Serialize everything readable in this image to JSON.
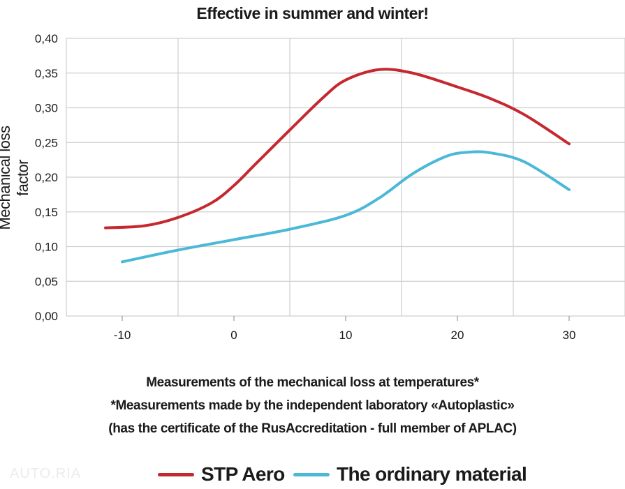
{
  "chart_data": {
    "type": "line",
    "title": "Effective in summer and winter!",
    "ylabel": "Mechanical loss factor",
    "xlabel": "Measurements of the mechanical loss at temperatures*",
    "notes": [
      "*Measurements made by the independent laboratory «Autoplastic»",
      "(has the certificate of the RusAccreditation - full member of APLAC)"
    ],
    "xlim": [
      -15,
      35
    ],
    "ylim": [
      0,
      0.4
    ],
    "x_ticks": [
      -10,
      0,
      10,
      20,
      30
    ],
    "x_tick_labels": [
      "-10",
      "0",
      "10",
      "20",
      "30"
    ],
    "y_ticks": [
      0,
      0.05,
      0.1,
      0.15,
      0.2,
      0.25,
      0.3,
      0.35,
      0.4
    ],
    "y_tick_labels": [
      "0,00",
      "0,05",
      "0,10",
      "0,15",
      "0,20",
      "0,25",
      "0,30",
      "0,35",
      "0,40"
    ],
    "grid": true,
    "legend_position": "bottom",
    "series": [
      {
        "name": "STP Aero",
        "color": "#c5282f",
        "x": [
          -11.5,
          -8,
          -5,
          -2,
          0,
          2,
          5,
          8,
          10,
          13,
          16,
          20,
          23,
          26,
          30
        ],
        "y": [
          0.127,
          0.13,
          0.142,
          0.163,
          0.188,
          0.22,
          0.268,
          0.315,
          0.34,
          0.355,
          0.35,
          0.33,
          0.313,
          0.29,
          0.248
        ]
      },
      {
        "name": "The ordinary material",
        "color": "#4bb8d8",
        "x": [
          -10,
          -5,
          0,
          5,
          10,
          13,
          16,
          19,
          21,
          23,
          26,
          30
        ],
        "y": [
          0.078,
          0.095,
          0.11,
          0.125,
          0.145,
          0.17,
          0.205,
          0.23,
          0.236,
          0.235,
          0.222,
          0.182
        ]
      }
    ]
  },
  "watermark": "AUTO.RIA"
}
